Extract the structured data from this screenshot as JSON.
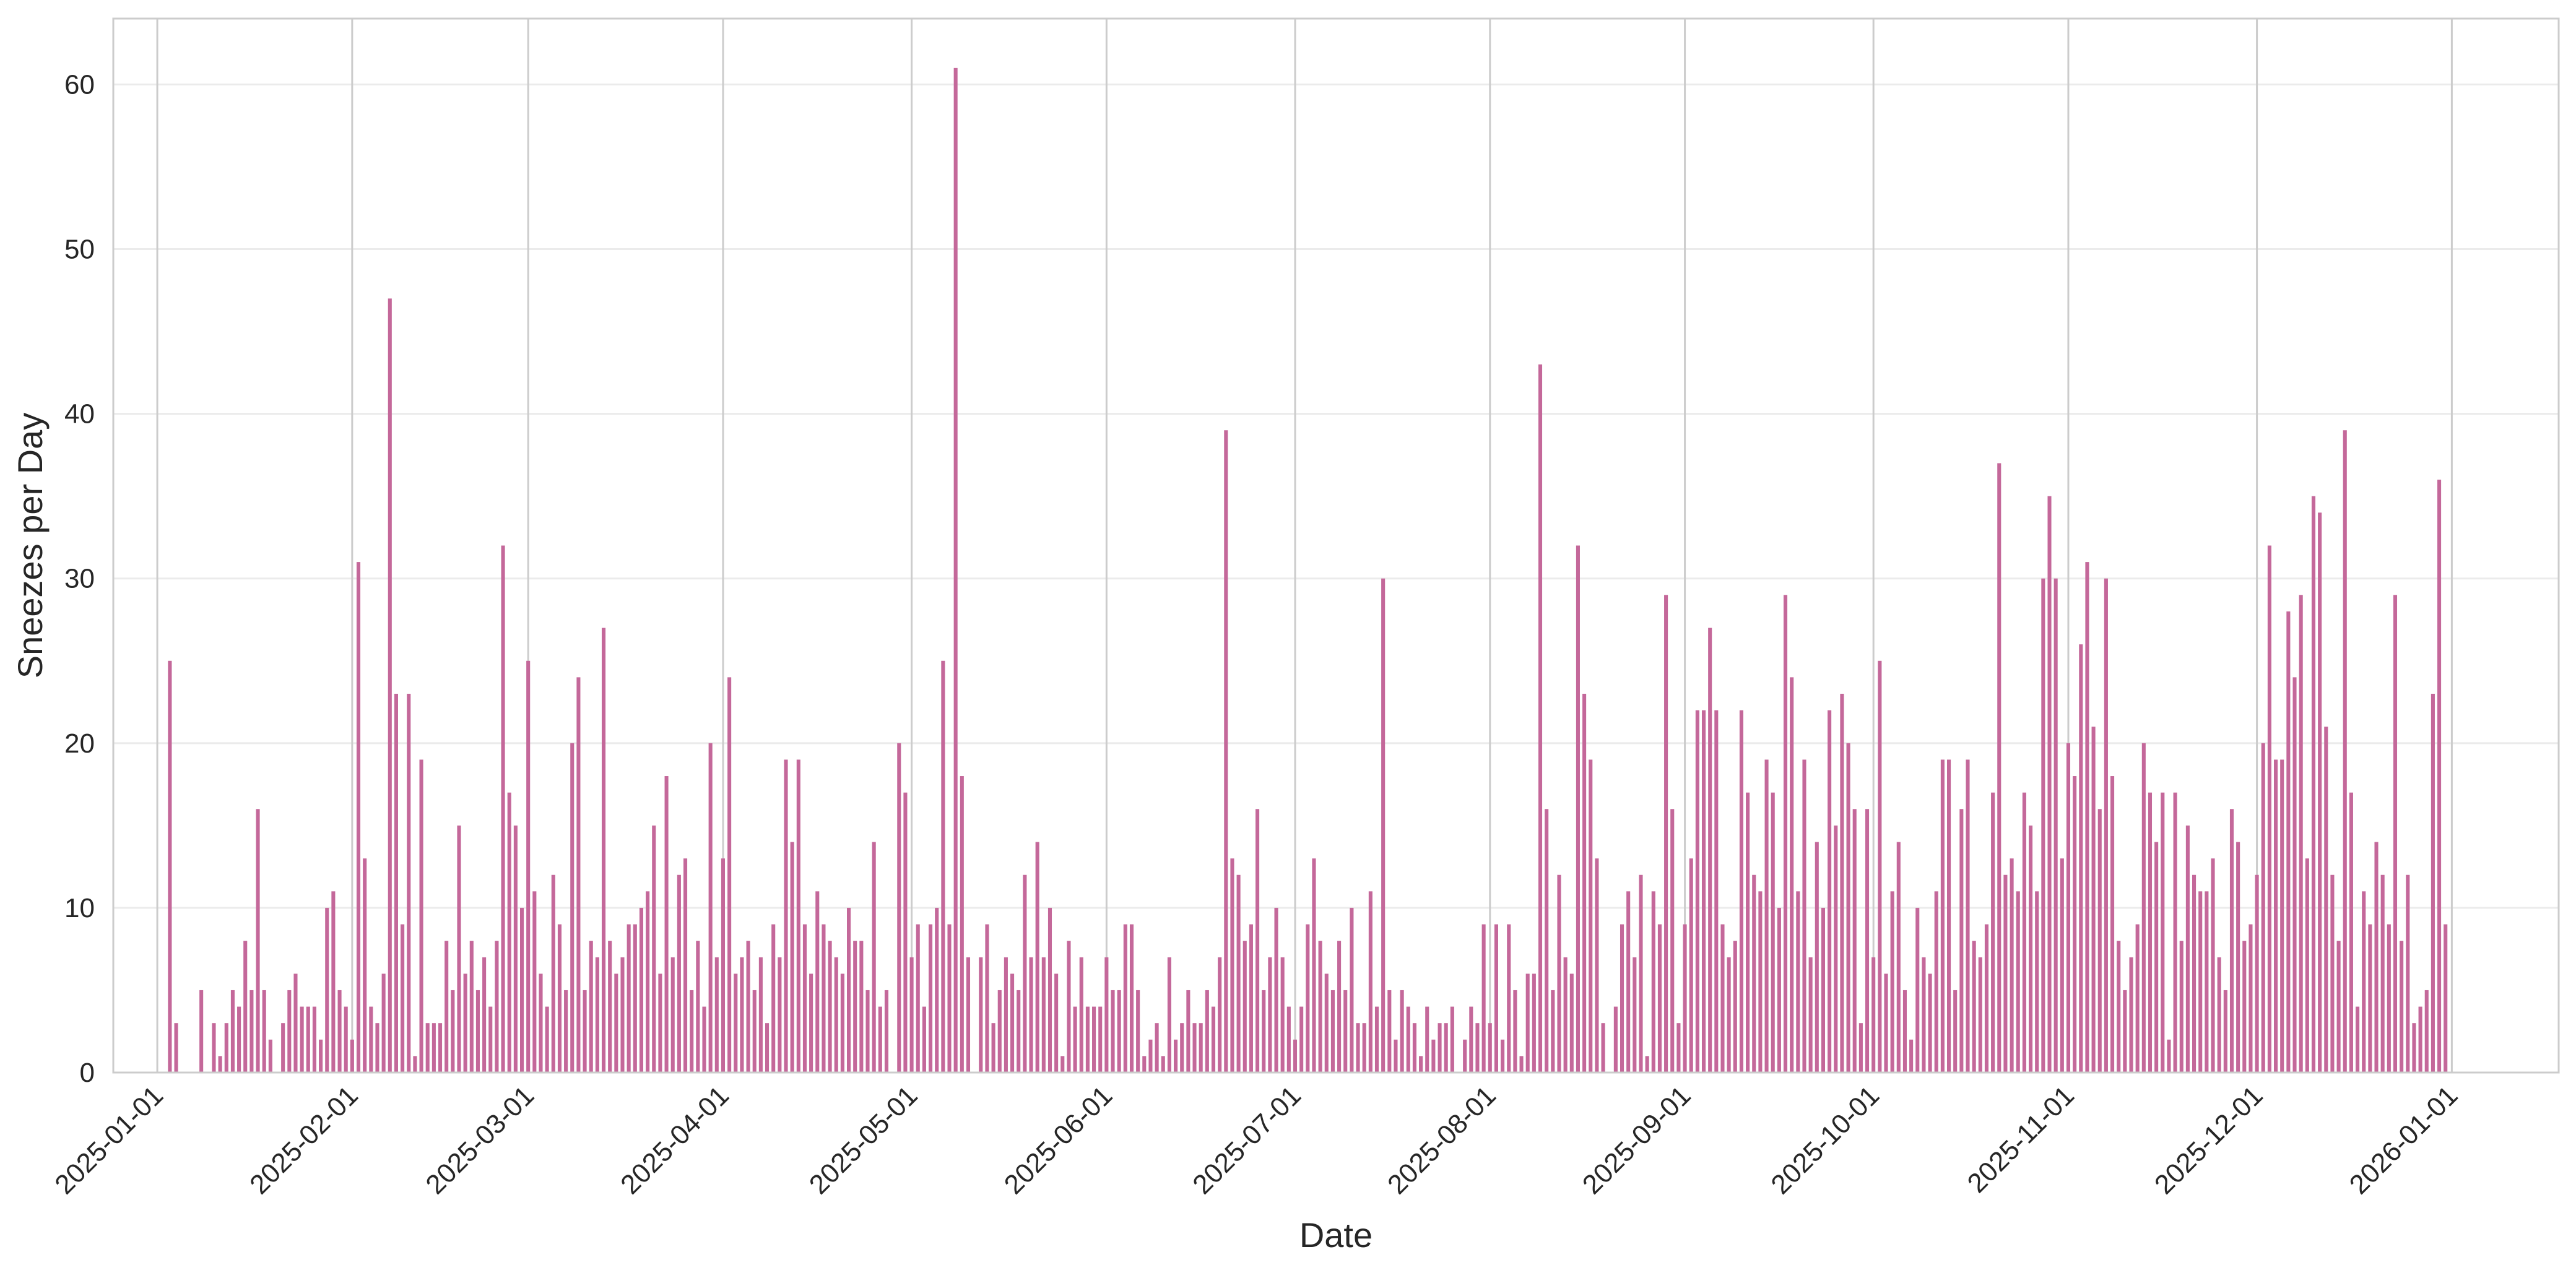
{
  "chart_data": {
    "type": "bar",
    "title": "",
    "xlabel": "Date",
    "ylabel": "Sneezes per Day",
    "bar_color": "#c4689a",
    "grid": true,
    "xlim": [
      "2024-12-25",
      "2026-01-18"
    ],
    "ylim": [
      0,
      64
    ],
    "y_ticks": [
      0,
      10,
      20,
      30,
      40,
      50,
      60
    ],
    "x_ticks": [
      "2025-01-01",
      "2025-02-01",
      "2025-03-01",
      "2025-04-01",
      "2025-05-01",
      "2025-06-01",
      "2025-07-01",
      "2025-08-01",
      "2025-09-01",
      "2025-10-01",
      "2025-11-01",
      "2025-12-01",
      "2026-01-01"
    ],
    "start_date": "2025-01-01",
    "values": [
      0,
      0,
      25,
      3,
      0,
      0,
      0,
      5,
      0,
      3,
      1,
      3,
      5,
      4,
      8,
      5,
      16,
      5,
      2,
      0,
      3,
      5,
      6,
      4,
      4,
      4,
      2,
      10,
      11,
      5,
      4,
      2,
      31,
      13,
      4,
      3,
      6,
      47,
      23,
      9,
      23,
      1,
      19,
      3,
      3,
      3,
      8,
      5,
      15,
      6,
      8,
      5,
      7,
      4,
      8,
      32,
      17,
      15,
      10,
      25,
      11,
      6,
      4,
      12,
      9,
      5,
      20,
      24,
      5,
      8,
      7,
      27,
      8,
      6,
      7,
      9,
      9,
      10,
      11,
      15,
      6,
      18,
      7,
      12,
      13,
      5,
      8,
      4,
      20,
      7,
      13,
      24,
      6,
      7,
      8,
      5,
      7,
      3,
      9,
      7,
      19,
      14,
      19,
      9,
      6,
      11,
      9,
      8,
      7,
      6,
      10,
      8,
      8,
      5,
      14,
      4,
      5,
      0,
      20,
      17,
      7,
      9,
      4,
      9,
      10,
      25,
      9,
      61,
      18,
      7,
      0,
      7,
      9,
      3,
      5,
      7,
      6,
      5,
      12,
      7,
      14,
      7,
      10,
      6,
      1,
      8,
      4,
      7,
      4,
      4,
      4,
      7,
      5,
      5,
      9,
      9,
      5,
      1,
      2,
      3,
      1,
      7,
      2,
      3,
      5,
      3,
      3,
      5,
      4,
      7,
      39,
      13,
      12,
      8,
      9,
      16,
      5,
      7,
      10,
      7,
      4,
      2,
      4,
      9,
      13,
      8,
      6,
      5,
      8,
      5,
      10,
      3,
      3,
      11,
      4,
      30,
      5,
      2,
      5,
      4,
      3,
      1,
      4,
      2,
      3,
      3,
      4,
      0,
      2,
      4,
      3,
      9,
      3,
      9,
      2,
      9,
      5,
      1,
      6,
      6,
      43,
      16,
      5,
      12,
      7,
      6,
      32,
      23,
      19,
      13,
      3,
      0,
      4,
      9,
      11,
      7,
      12,
      1,
      11,
      9,
      29,
      16,
      3,
      9,
      13,
      22,
      22,
      27,
      22,
      9,
      7,
      8,
      22,
      17,
      12,
      11,
      19,
      17,
      10,
      29,
      24,
      11,
      19,
      7,
      14,
      10,
      22,
      15,
      23,
      20,
      16,
      3,
      16,
      7,
      25,
      6,
      11,
      14,
      5,
      2,
      10,
      7,
      6,
      11,
      19,
      19,
      5,
      16,
      19,
      8,
      7,
      9,
      17,
      37,
      12,
      13,
      11,
      17,
      15,
      11,
      30,
      35,
      30,
      13,
      20,
      18,
      26,
      31,
      21,
      16,
      30,
      18,
      8,
      5,
      7,
      9,
      20,
      17,
      14,
      17,
      2,
      17,
      8,
      15,
      12,
      11,
      11,
      13,
      7,
      5,
      16,
      14,
      8,
      9,
      12,
      20,
      32,
      19,
      19,
      28,
      24,
      29,
      13,
      35,
      34,
      21,
      12,
      8,
      39,
      17,
      4,
      11,
      9,
      14,
      12,
      9,
      29,
      8,
      12,
      3,
      4,
      5,
      23,
      36,
      9
    ]
  }
}
